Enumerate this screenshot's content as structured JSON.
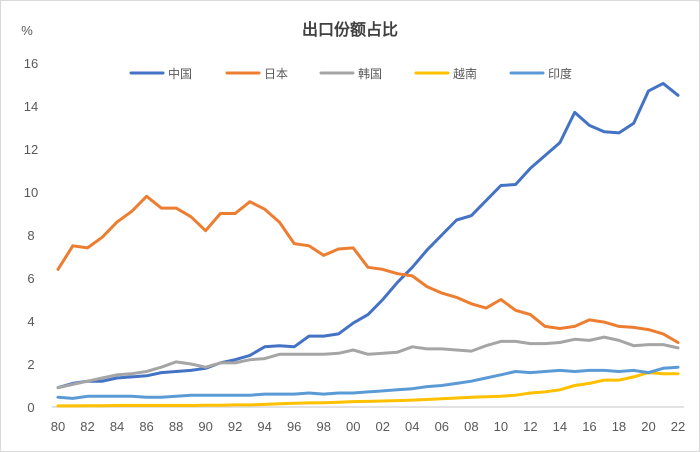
{
  "chart_data": {
    "type": "line",
    "title": "出口份额占比",
    "ylabel": "%",
    "xlabel": "",
    "ylim": [
      0,
      16
    ],
    "yticks": [
      0,
      2,
      4,
      6,
      8,
      10,
      12,
      14,
      16
    ],
    "x": [
      "80",
      "81",
      "82",
      "83",
      "84",
      "85",
      "86",
      "87",
      "88",
      "89",
      "90",
      "91",
      "92",
      "93",
      "94",
      "95",
      "96",
      "97",
      "98",
      "99",
      "00",
      "01",
      "02",
      "03",
      "04",
      "05",
      "06",
      "07",
      "08",
      "09",
      "10",
      "11",
      "12",
      "13",
      "14",
      "15",
      "16",
      "17",
      "18",
      "19",
      "20",
      "21",
      "22"
    ],
    "xtick_labels": [
      "80",
      "82",
      "84",
      "86",
      "88",
      "90",
      "92",
      "94",
      "96",
      "98",
      "00",
      "02",
      "04",
      "06",
      "08",
      "10",
      "12",
      "14",
      "16",
      "18",
      "20",
      "22"
    ],
    "grid": false,
    "legend_position": "top",
    "series": [
      {
        "name": "中国",
        "color": "#4472C4",
        "values": [
          0.9,
          1.1,
          1.2,
          1.2,
          1.35,
          1.4,
          1.45,
          1.6,
          1.65,
          1.7,
          1.8,
          2.05,
          2.2,
          2.4,
          2.8,
          2.85,
          2.8,
          3.3,
          3.3,
          3.4,
          3.9,
          4.3,
          5.0,
          5.8,
          6.5,
          7.3,
          8.0,
          8.7,
          8.9,
          9.6,
          10.3,
          10.35,
          11.1,
          11.7,
          12.3,
          13.7,
          13.1,
          12.8,
          12.75,
          13.2,
          14.7,
          15.05,
          14.5
        ]
      },
      {
        "name": "日本",
        "color": "#ED7D31",
        "values": [
          6.4,
          7.5,
          7.4,
          7.9,
          8.6,
          9.1,
          9.8,
          9.25,
          9.25,
          8.85,
          8.2,
          9.0,
          9.0,
          9.55,
          9.2,
          8.6,
          7.6,
          7.5,
          7.05,
          7.35,
          7.4,
          6.5,
          6.4,
          6.2,
          6.1,
          5.6,
          5.3,
          5.1,
          4.8,
          4.6,
          5.0,
          4.5,
          4.3,
          3.75,
          3.65,
          3.75,
          4.05,
          3.95,
          3.75,
          3.7,
          3.6,
          3.4,
          3.0
        ]
      },
      {
        "name": "韩国",
        "color": "#A5A5A5",
        "values": [
          0.9,
          1.05,
          1.2,
          1.35,
          1.5,
          1.55,
          1.65,
          1.85,
          2.1,
          2.0,
          1.85,
          2.05,
          2.05,
          2.2,
          2.25,
          2.45,
          2.45,
          2.45,
          2.45,
          2.5,
          2.65,
          2.45,
          2.5,
          2.55,
          2.8,
          2.7,
          2.7,
          2.65,
          2.6,
          2.85,
          3.05,
          3.05,
          2.95,
          2.95,
          3.0,
          3.15,
          3.1,
          3.25,
          3.1,
          2.85,
          2.9,
          2.9,
          2.75
        ]
      },
      {
        "name": "越南",
        "color": "#FFC000",
        "values": [
          0.05,
          0.05,
          0.06,
          0.06,
          0.07,
          0.07,
          0.07,
          0.07,
          0.07,
          0.07,
          0.08,
          0.08,
          0.1,
          0.1,
          0.12,
          0.15,
          0.17,
          0.19,
          0.2,
          0.22,
          0.25,
          0.26,
          0.28,
          0.3,
          0.32,
          0.35,
          0.38,
          0.42,
          0.45,
          0.48,
          0.5,
          0.55,
          0.65,
          0.7,
          0.8,
          1.0,
          1.1,
          1.25,
          1.25,
          1.4,
          1.6,
          1.55,
          1.55
        ]
      },
      {
        "name": "印度",
        "color": "#5B9BD5",
        "values": [
          0.45,
          0.4,
          0.5,
          0.5,
          0.5,
          0.5,
          0.45,
          0.45,
          0.5,
          0.55,
          0.55,
          0.55,
          0.55,
          0.55,
          0.6,
          0.6,
          0.6,
          0.65,
          0.6,
          0.65,
          0.65,
          0.7,
          0.75,
          0.8,
          0.85,
          0.95,
          1.0,
          1.1,
          1.2,
          1.35,
          1.5,
          1.65,
          1.6,
          1.65,
          1.7,
          1.65,
          1.7,
          1.7,
          1.65,
          1.7,
          1.6,
          1.8,
          1.85
        ]
      }
    ]
  }
}
